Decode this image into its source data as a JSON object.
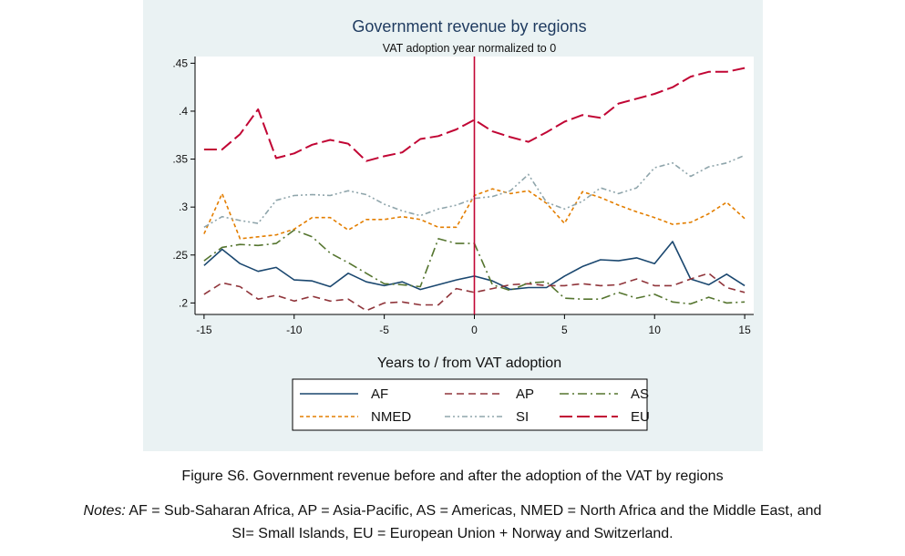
{
  "caption": "Figure S6. Government revenue before and after the adoption of the VAT by regions",
  "notes": {
    "label": "Notes:",
    "line1": " AF = Sub-Saharan Africa, AP = Asia-Pacific, AS = Americas, NMED = North Africa and the Middle East, and",
    "line2": "SI= Small Islands, EU = European Union + Norway and Switzerland."
  },
  "colors": {
    "panel_bg": "#eaf2f3",
    "plot_bg": "#ffffff",
    "title": "#1e3a5f",
    "AF": "#1a476f",
    "AP": "#90353b",
    "AS": "#55752f",
    "NMED": "#e37e00",
    "SI": "#8fa5ab",
    "EU": "#c10534",
    "vline": "#c10534"
  },
  "chart_data": {
    "type": "line",
    "title": "Government revenue by regions",
    "subtitle": "VAT adoption year normalized to 0",
    "xlabel": "Years to / from VAT adoption",
    "ylabel": "",
    "xlim": [
      -15.5,
      15.5
    ],
    "ylim": [
      0.188,
      0.457
    ],
    "xticks": [
      -15,
      -10,
      -5,
      0,
      5,
      10,
      15
    ],
    "xtick_labels": [
      "-15",
      "-10",
      "-5",
      "0",
      "5",
      "10",
      "15"
    ],
    "yticks": [
      0.2,
      0.25,
      0.3,
      0.35,
      0.4,
      0.45
    ],
    "ytick_labels": [
      ".2",
      ".25",
      ".3",
      ".35",
      ".4",
      ".45"
    ],
    "grid": false,
    "vline_x": 0,
    "legend_position": "bottom",
    "x": [
      -15,
      -14,
      -13,
      -12,
      -11,
      -10,
      -9,
      -8,
      -7,
      -6,
      -5,
      -4,
      -3,
      -2,
      -1,
      0,
      1,
      2,
      3,
      4,
      5,
      6,
      7,
      8,
      9,
      10,
      11,
      12,
      13,
      14,
      15
    ],
    "series": [
      {
        "name": "AF",
        "dash": "",
        "values": [
          0.239,
          0.256,
          0.241,
          0.233,
          0.237,
          0.224,
          0.223,
          0.217,
          0.231,
          0.222,
          0.218,
          0.222,
          0.214,
          0.219,
          0.224,
          0.228,
          0.223,
          0.214,
          0.216,
          0.216,
          0.228,
          0.238,
          0.245,
          0.244,
          0.247,
          0.241,
          0.264,
          0.225,
          0.219,
          0.23,
          0.218
        ]
      },
      {
        "name": "AP",
        "dash": "8,5",
        "values": [
          0.209,
          0.221,
          0.217,
          0.204,
          0.208,
          0.202,
          0.207,
          0.202,
          0.204,
          0.192,
          0.2,
          0.201,
          0.198,
          0.198,
          0.215,
          0.211,
          0.215,
          0.219,
          0.22,
          0.218,
          0.218,
          0.22,
          0.218,
          0.219,
          0.225,
          0.218,
          0.218,
          0.225,
          0.231,
          0.216,
          0.211
        ]
      },
      {
        "name": "AS",
        "dash": "10,4,2,4",
        "values": [
          0.244,
          0.258,
          0.261,
          0.26,
          0.262,
          0.276,
          0.269,
          0.252,
          0.242,
          0.231,
          0.22,
          0.219,
          0.217,
          0.267,
          0.262,
          0.262,
          0.219,
          0.213,
          0.221,
          0.222,
          0.205,
          0.204,
          0.204,
          0.211,
          0.205,
          0.209,
          0.201,
          0.199,
          0.206,
          0.2,
          0.201
        ]
      },
      {
        "name": "NMED",
        "dash": "4,3",
        "values": [
          0.272,
          0.314,
          0.267,
          0.269,
          0.271,
          0.277,
          0.289,
          0.289,
          0.276,
          0.287,
          0.287,
          0.29,
          0.287,
          0.279,
          0.279,
          0.312,
          0.319,
          0.314,
          0.317,
          0.304,
          0.283,
          0.316,
          0.31,
          0.302,
          0.295,
          0.289,
          0.282,
          0.284,
          0.293,
          0.305,
          0.288
        ]
      },
      {
        "name": "SI",
        "dash": "6,3,2,3,2,3",
        "values": [
          0.279,
          0.29,
          0.286,
          0.283,
          0.307,
          0.312,
          0.313,
          0.312,
          0.317,
          0.313,
          0.303,
          0.296,
          0.291,
          0.298,
          0.302,
          0.309,
          0.311,
          0.317,
          0.334,
          0.305,
          0.298,
          0.306,
          0.32,
          0.314,
          0.32,
          0.341,
          0.346,
          0.332,
          0.342,
          0.346,
          0.354
        ]
      },
      {
        "name": "EU",
        "dash": "14,5",
        "values": [
          0.36,
          0.36,
          0.376,
          0.402,
          0.351,
          0.356,
          0.365,
          0.37,
          0.366,
          0.348,
          0.353,
          0.357,
          0.371,
          0.374,
          0.381,
          0.391,
          0.379,
          0.373,
          0.368,
          0.378,
          0.389,
          0.396,
          0.393,
          0.408,
          0.413,
          0.418,
          0.425,
          0.436,
          0.441,
          0.441,
          0.445
        ]
      }
    ],
    "legend": [
      {
        "name": "AF",
        "label": "AF"
      },
      {
        "name": "AP",
        "label": "AP"
      },
      {
        "name": "AS",
        "label": "AS"
      },
      {
        "name": "NMED",
        "label": "NMED"
      },
      {
        "name": "SI",
        "label": "SI"
      },
      {
        "name": "EU",
        "label": "EU"
      }
    ]
  }
}
